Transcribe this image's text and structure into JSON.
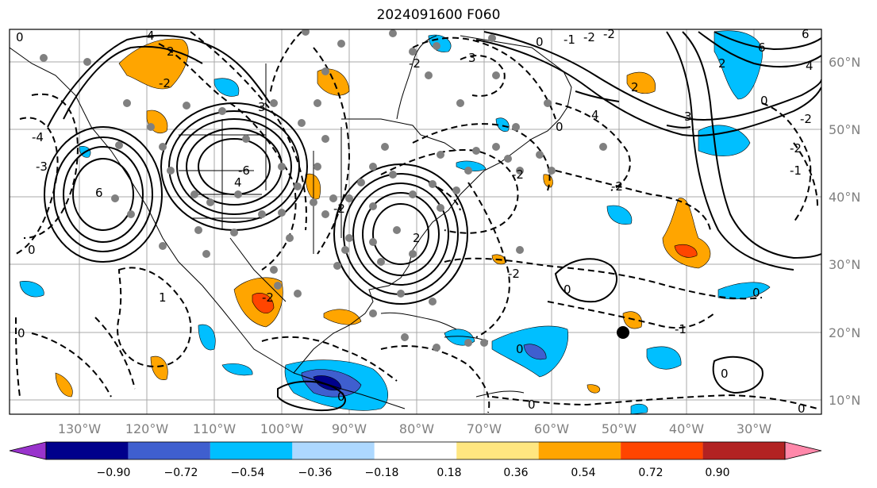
{
  "title": "2024091600 F060",
  "longitude_labels": [
    "130°W",
    "120°W",
    "110°W",
    "100°W",
    "90°W",
    "80°W",
    "70°W",
    "60°W",
    "50°W",
    "40°W",
    "30°W"
  ],
  "latitude_labels": [
    "60°N",
    "50°N",
    "40°N",
    "30°N",
    "20°N",
    "10°N"
  ],
  "colorbar": {
    "colors": [
      "#9933cc",
      "#00008b",
      "#3f5fcf",
      "#00bfff",
      "#add8ff",
      "#ffffff",
      "#ffe680",
      "#ffa500",
      "#ff4500",
      "#b22222",
      "#ff88aa"
    ],
    "tick_labels": [
      "−0.90",
      "−0.72",
      "−0.54",
      "−0.36",
      "−0.18",
      "0.18",
      "0.36",
      "0.54",
      "0.72",
      "0.90"
    ]
  },
  "contour_labels": [
    "0",
    "-4",
    "4",
    "-2",
    "2",
    "-3",
    "3",
    "-6",
    "6",
    "-1",
    "1"
  ],
  "marker": {
    "label": "black dot",
    "lon": "50°W",
    "lat": "20°N"
  }
}
